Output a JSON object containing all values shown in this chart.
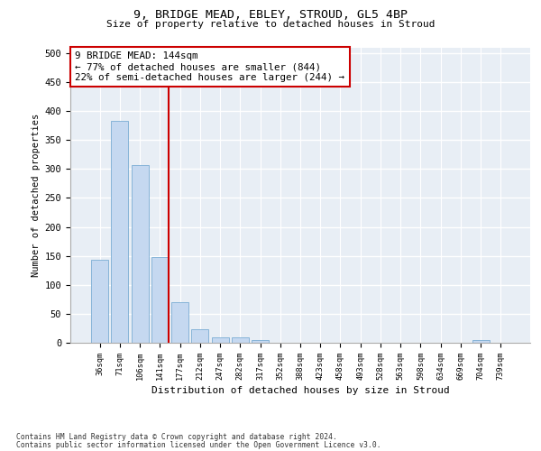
{
  "title1": "9, BRIDGE MEAD, EBLEY, STROUD, GL5 4BP",
  "title2": "Size of property relative to detached houses in Stroud",
  "xlabel": "Distribution of detached houses by size in Stroud",
  "ylabel": "Number of detached properties",
  "categories": [
    "36sqm",
    "71sqm",
    "106sqm",
    "141sqm",
    "177sqm",
    "212sqm",
    "247sqm",
    "282sqm",
    "317sqm",
    "352sqm",
    "388sqm",
    "423sqm",
    "458sqm",
    "493sqm",
    "528sqm",
    "563sqm",
    "598sqm",
    "634sqm",
    "669sqm",
    "704sqm",
    "739sqm"
  ],
  "values": [
    143,
    383,
    307,
    148,
    70,
    23,
    10,
    10,
    5,
    0,
    0,
    0,
    0,
    0,
    0,
    0,
    0,
    0,
    0,
    5,
    0
  ],
  "bar_color": "#c5d8f0",
  "bar_edge_color": "#7aadd4",
  "vline_x_index": 3,
  "vline_color": "#cc0000",
  "annotation_text": "9 BRIDGE MEAD: 144sqm\n← 77% of detached houses are smaller (844)\n22% of semi-detached houses are larger (244) →",
  "annotation_box_color": "#ffffff",
  "annotation_box_edge": "#cc0000",
  "ylim": [
    0,
    510
  ],
  "yticks": [
    0,
    50,
    100,
    150,
    200,
    250,
    300,
    350,
    400,
    450,
    500
  ],
  "footer_line1": "Contains HM Land Registry data © Crown copyright and database right 2024.",
  "footer_line2": "Contains public sector information licensed under the Open Government Licence v3.0.",
  "bg_color": "#ffffff",
  "plot_bg_color": "#e8eef5"
}
